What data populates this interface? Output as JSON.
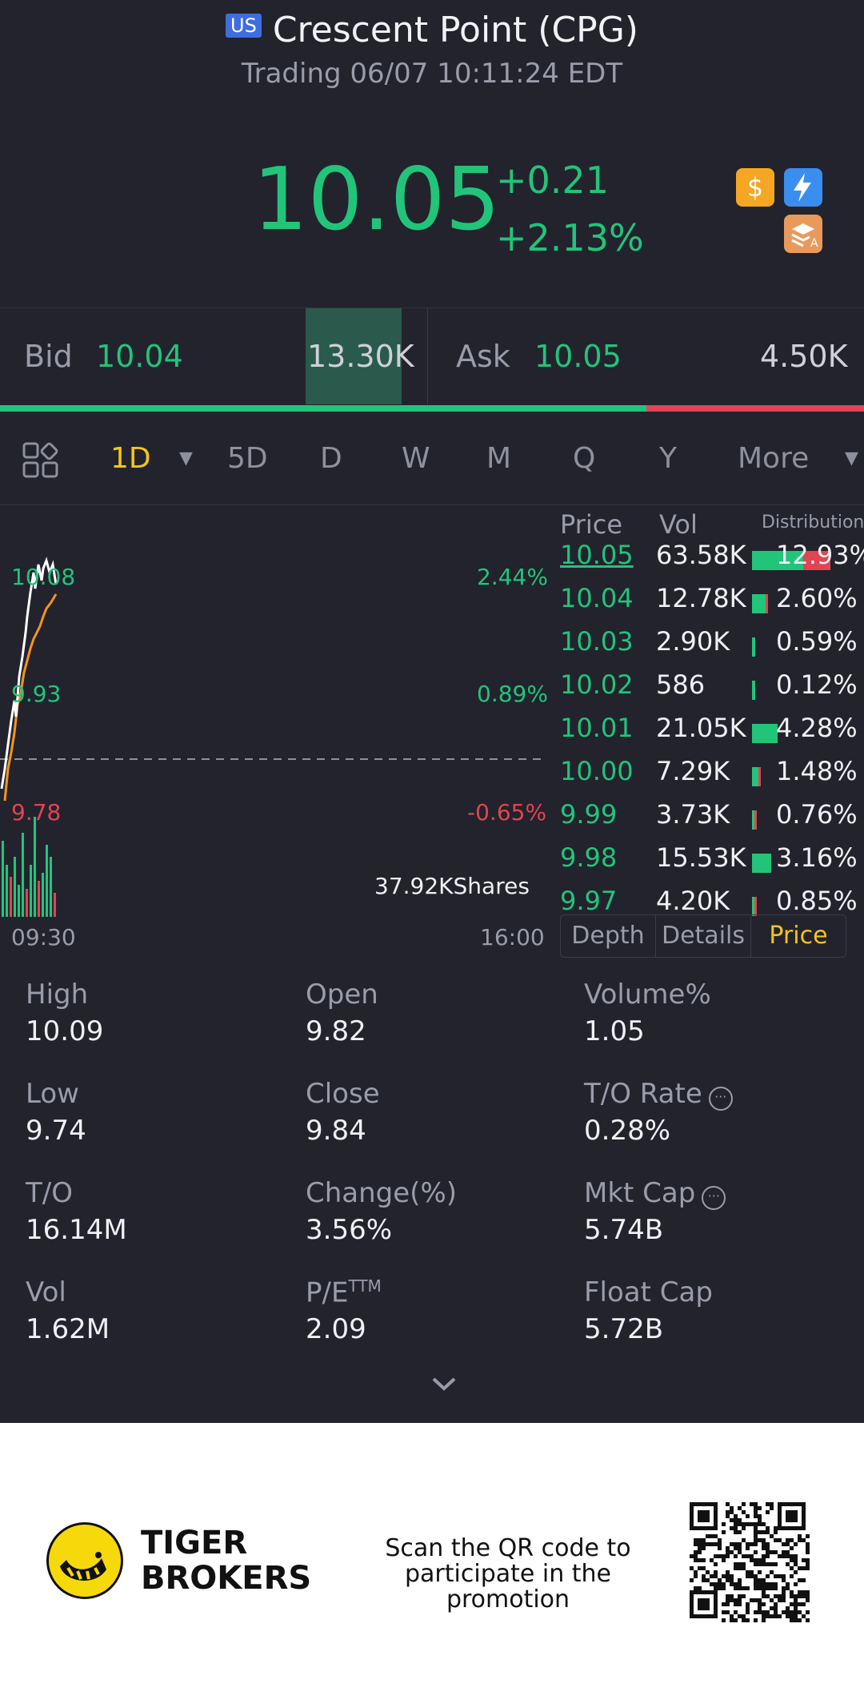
{
  "header": {
    "market_badge": "US",
    "title": "Crescent Point (CPG)",
    "subtitle": "Trading 06/07 10:11:24 EDT"
  },
  "quote": {
    "price": "10.05",
    "change": "+0.21",
    "change_pct": "+2.13%",
    "icons": [
      "dollar-icon",
      "lightning-icon",
      "stack-a-icon"
    ]
  },
  "bid_ask": {
    "bid_label": "Bid",
    "bid_price": "10.04",
    "bid_size": "13.30K",
    "ask_label": "Ask",
    "ask_price": "10.05",
    "ask_size": "4.50K",
    "bid_ratio": 0.748
  },
  "tabs": {
    "items": [
      "1D",
      "5D",
      "D",
      "W",
      "M",
      "Q",
      "Y",
      "More"
    ],
    "active": "1D"
  },
  "chart": {
    "left_labels": [
      "10.08",
      "9.93",
      "9.78"
    ],
    "right_labels": [
      "2.44%",
      "0.89%",
      "-0.65%"
    ],
    "time_start": "09:30",
    "time_end": "16:00",
    "volume_tooltip": "37.92KShares"
  },
  "order_book": {
    "headers": [
      "Price",
      "Vol",
      "Distribution"
    ],
    "rows": [
      {
        "price": "10.05",
        "vol": "63.58K",
        "pct": "12.93%",
        "share": 12.93
      },
      {
        "price": "10.04",
        "vol": "12.78K",
        "pct": "2.60%",
        "share": 2.6
      },
      {
        "price": "10.03",
        "vol": "2.90K",
        "pct": "0.59%",
        "share": 0.59
      },
      {
        "price": "10.02",
        "vol": "586",
        "pct": "0.12%",
        "share": 0.12
      },
      {
        "price": "10.01",
        "vol": "21.05K",
        "pct": "4.28%",
        "share": 4.28
      },
      {
        "price": "10.00",
        "vol": "7.29K",
        "pct": "1.48%",
        "share": 1.48
      },
      {
        "price": "9.99",
        "vol": "3.73K",
        "pct": "0.76%",
        "share": 0.76
      },
      {
        "price": "9.98",
        "vol": "15.53K",
        "pct": "3.16%",
        "share": 3.16
      },
      {
        "price": "9.97",
        "vol": "4.20K",
        "pct": "0.85%",
        "share": 0.85
      }
    ],
    "segments": [
      "Depth",
      "Details",
      "Price"
    ],
    "active_segment": "Price"
  },
  "stats": {
    "high_label": "High",
    "high": "10.09",
    "open_label": "Open",
    "open": "9.82",
    "volpct_label": "Volume%",
    "volpct": "1.05",
    "low_label": "Low",
    "low": "9.74",
    "close_label": "Close",
    "close": "9.84",
    "to_rate_label": "T/O Rate",
    "to_rate": "0.28%",
    "to_label": "T/O",
    "to": "16.14M",
    "chgpct_label": "Change(%)",
    "chgpct": "3.56%",
    "mktcap_label": "Mkt Cap",
    "mktcap": "5.74B",
    "vol_label": "Vol",
    "vol": "1.62M",
    "pe_label": "P/E",
    "pe_sup": "TTM",
    "pe": "2.09",
    "floatcap_label": "Float Cap",
    "floatcap": "5.72B"
  },
  "footer": {
    "brand_line1": "TIGER",
    "brand_line2": "BROKERS",
    "scan_line1": "Scan the QR code to",
    "scan_line2": "participate in the promotion"
  },
  "colors": {
    "up": "#22c47a",
    "down": "#e24452",
    "accent": "#f5c518",
    "background": "#22232d"
  }
}
